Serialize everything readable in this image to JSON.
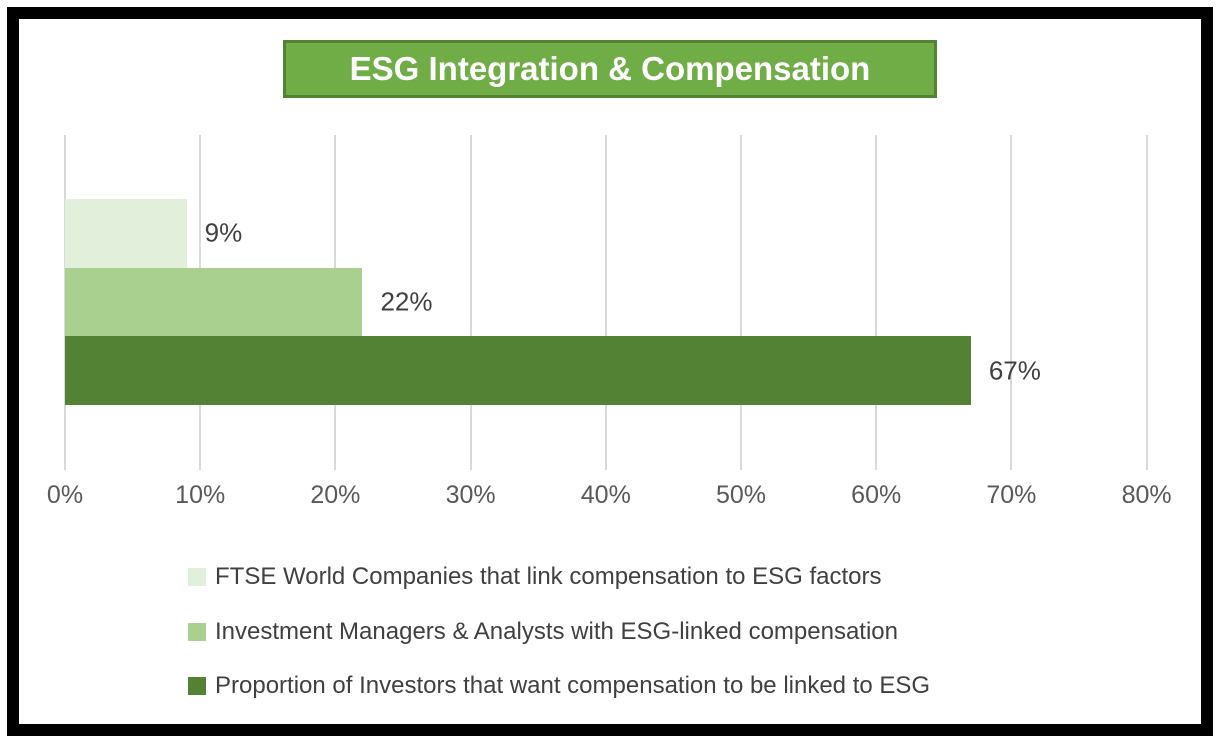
{
  "window": {
    "background_color": "#FFFFFF",
    "frame_color": "#000000"
  },
  "title": {
    "text": "ESG Integration & Compensation",
    "fill_color": "#70AD47",
    "border_color": "#548235",
    "text_color": "#FFFFFF"
  },
  "chart_data": {
    "type": "bar",
    "orientation": "horizontal",
    "title": "ESG Integration & Compensation",
    "series": [
      {
        "name": "FTSE World Companies that link compensation to ESG factors",
        "value": 9,
        "data_label": "9%",
        "color": "#E2EFDA"
      },
      {
        "name": "Investment Managers & Analysts with ESG-linked compensation",
        "value": 22,
        "data_label": "22%",
        "color": "#A9D08E"
      },
      {
        "name": "Proportion of Investors that want compensation to be linked to ESG",
        "value": 67,
        "data_label": "67%",
        "color": "#548235"
      }
    ],
    "x_axis": {
      "min": 0,
      "max": 80,
      "step": 10,
      "unit": "%",
      "tick_labels": [
        "0%",
        "10%",
        "20%",
        "30%",
        "40%",
        "50%",
        "60%",
        "70%",
        "80%"
      ]
    },
    "xlabel": "",
    "ylabel": "",
    "grid": true,
    "gridline_color": "#D9D9D9",
    "axis_label_color": "#595959",
    "data_label_color": "#404040",
    "legend_position": "bottom",
    "legend": [
      "FTSE World Companies that link compensation to ESG factors",
      "Investment Managers & Analysts with ESG-linked compensation",
      "Proportion of Investors that want compensation to be linked to ESG"
    ]
  }
}
